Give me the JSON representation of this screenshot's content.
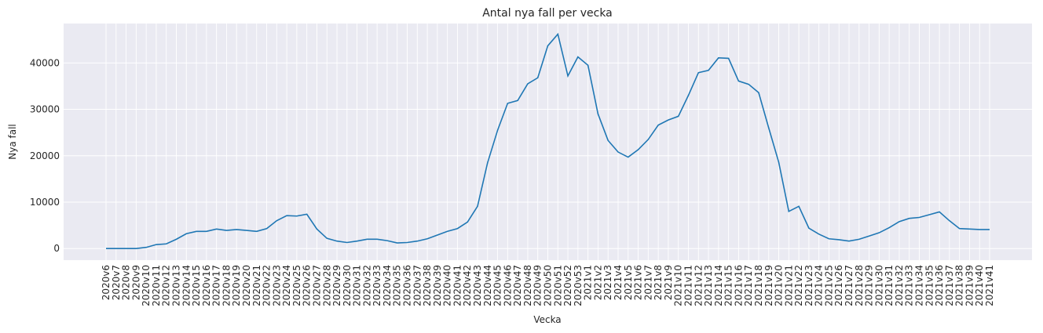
{
  "chart_data": {
    "type": "line",
    "title": "Antal nya fall per vecka",
    "xlabel": "Vecka",
    "ylabel": "Nya fall",
    "ylim": [
      -2500,
      48500
    ],
    "yticks": [
      0,
      10000,
      20000,
      30000,
      40000
    ],
    "grid": true,
    "line_color": "#1f77b4",
    "background_color": "#eaeaf2",
    "grid_color": "#ffffff",
    "categories": [
      "2020v6",
      "2020v7",
      "2020v8",
      "2020v9",
      "2020v10",
      "2020v11",
      "2020v12",
      "2020v13",
      "2020v14",
      "2020v15",
      "2020v16",
      "2020v17",
      "2020v18",
      "2020v19",
      "2020v20",
      "2020v21",
      "2020v22",
      "2020v23",
      "2020v24",
      "2020v25",
      "2020v26",
      "2020v27",
      "2020v28",
      "2020v29",
      "2020v30",
      "2020v31",
      "2020v32",
      "2020v33",
      "2020v34",
      "2020v35",
      "2020v36",
      "2020v37",
      "2020v38",
      "2020v39",
      "2020v40",
      "2020v41",
      "2020v42",
      "2020v43",
      "2020v44",
      "2020v45",
      "2020v46",
      "2020v47",
      "2020v48",
      "2020v49",
      "2020v50",
      "2020v51",
      "2020v52",
      "2020v53",
      "2021v1",
      "2021v2",
      "2021v3",
      "2021v4",
      "2021v5",
      "2021v6",
      "2021v7",
      "2021v8",
      "2021v9",
      "2021v10",
      "2021v11",
      "2021v12",
      "2021v13",
      "2021v14",
      "2021v15",
      "2021v16",
      "2021v17",
      "2021v18",
      "2021v19",
      "2021v20",
      "2021v21",
      "2021v22",
      "2021v23",
      "2021v24",
      "2021v25",
      "2021v26",
      "2021v27",
      "2021v28",
      "2021v29",
      "2021v30",
      "2021v31",
      "2021v32",
      "2021v33",
      "2021v34",
      "2021v35",
      "2021v36",
      "2021v37",
      "2021v38",
      "2021v39",
      "2021v40",
      "2021v41"
    ],
    "values": [
      0,
      0,
      0,
      0,
      250,
      850,
      1000,
      2000,
      3200,
      3700,
      3700,
      4200,
      3900,
      4100,
      3900,
      3700,
      4300,
      6000,
      7100,
      7000,
      7400,
      4200,
      2200,
      1600,
      1300,
      1600,
      2000,
      2000,
      1700,
      1200,
      1300,
      1600,
      2100,
      2900,
      3700,
      4300,
      5700,
      9100,
      18500,
      25500,
      31300,
      31900,
      35500,
      36800,
      43700,
      46200,
      37200,
      41300,
      39500,
      29000,
      23300,
      20800,
      19700,
      21300,
      23500,
      26600,
      27700,
      28500,
      33000,
      37900,
      38400,
      41100,
      41000,
      36100,
      35400,
      33600,
      26000,
      18600,
      8000,
      9100,
      4400,
      3100,
      2100,
      1900,
      1600,
      2000,
      2700,
      3400,
      4500,
      5800,
      6500,
      6700,
      7300,
      7900,
      6000,
      4300,
      4200,
      4100,
      4100
    ]
  }
}
